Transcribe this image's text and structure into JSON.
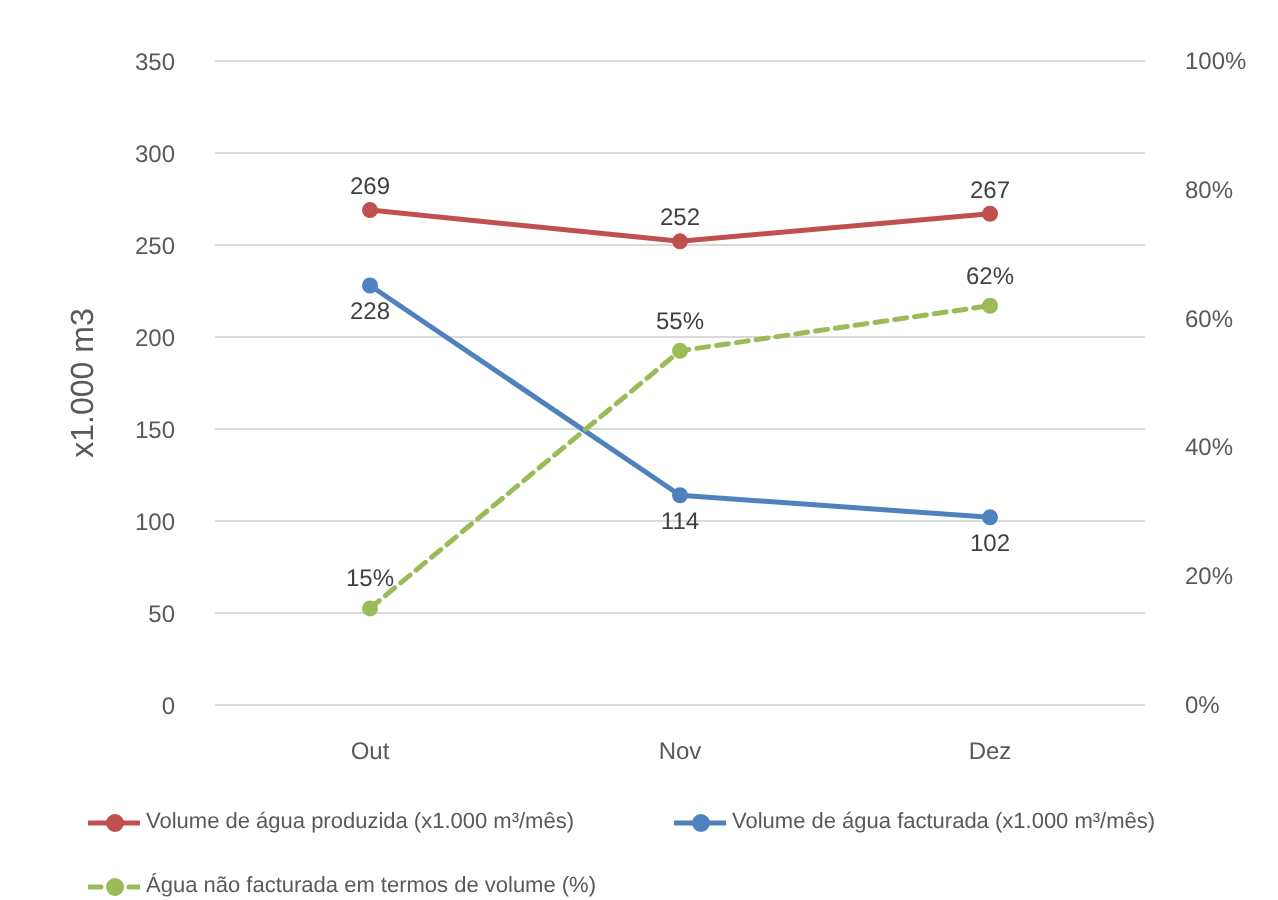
{
  "chart_data": {
    "type": "line",
    "ylabel": "x1.000 m3",
    "categories": [
      "Out",
      "Nov",
      "Dez"
    ],
    "ylim": [
      0,
      350
    ],
    "yticks": [
      0,
      50,
      100,
      150,
      200,
      250,
      300,
      350
    ],
    "y2lim": [
      0,
      100
    ],
    "y2ticks": [
      {
        "value": 0,
        "label": "0%"
      },
      {
        "value": 20,
        "label": "20%"
      },
      {
        "value": 40,
        "label": "40%"
      },
      {
        "value": 60,
        "label": "60%"
      },
      {
        "value": 80,
        "label": "80%"
      },
      {
        "value": 100,
        "label": "100%"
      }
    ],
    "series": [
      {
        "name": "Volume de água produzida (x1.000 m³/mês)",
        "color": "#c0504d",
        "values": [
          269,
          252,
          267
        ],
        "value_labels": [
          "269",
          "252",
          "267"
        ]
      },
      {
        "name": "Volume de água facturada (x1.000 m³/mês)",
        "color": "#4f81bd",
        "values": [
          228,
          114,
          102
        ],
        "value_labels": [
          "228",
          "114",
          "102"
        ]
      },
      {
        "name": "Água não facturada em termos de volume (%)",
        "color": "#9bbb59",
        "values": [
          15,
          55,
          62
        ],
        "value_labels": [
          "15%",
          "55%",
          "62%"
        ],
        "axis": "y2",
        "line_style": "dashed"
      }
    ],
    "grid": "y",
    "legend": "bottom",
    "marker": "circle"
  }
}
